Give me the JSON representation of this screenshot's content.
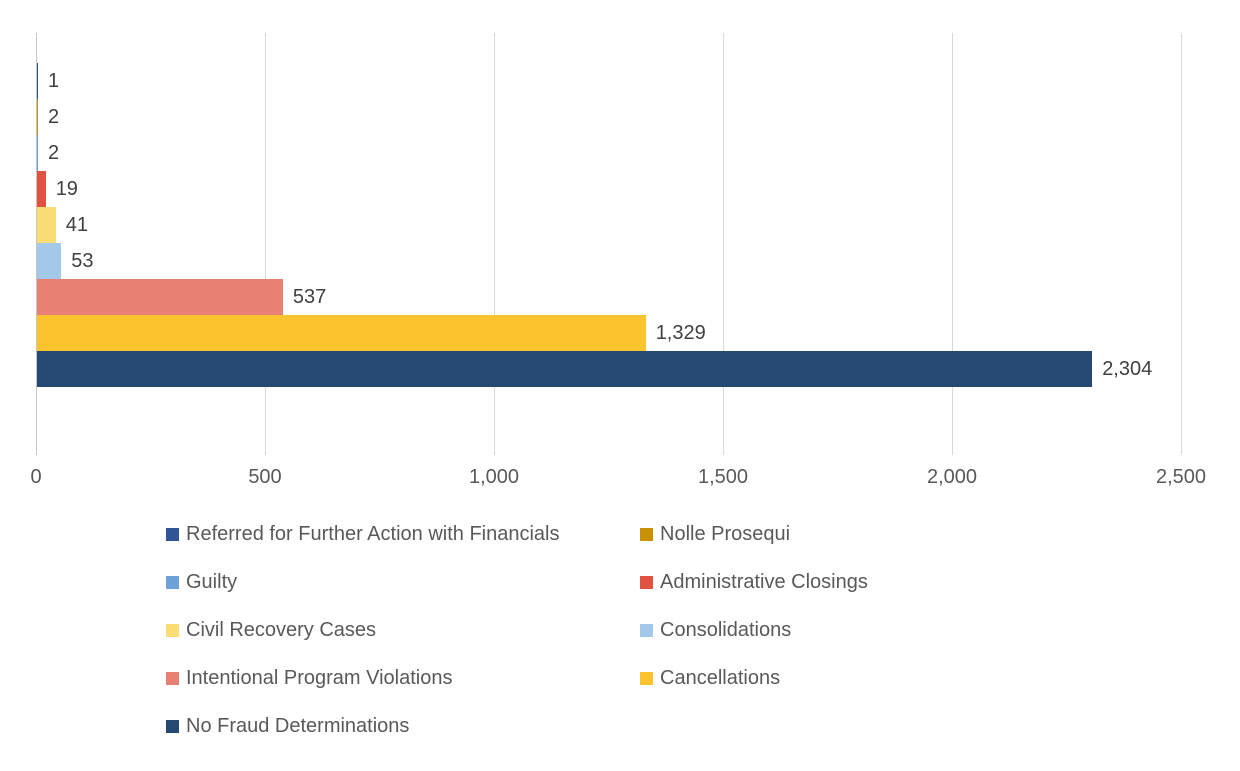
{
  "chart_data": {
    "type": "bar",
    "orientation": "horizontal",
    "title": "",
    "xlabel": "",
    "ylabel": "",
    "xlim": [
      0,
      2500
    ],
    "grid": true,
    "legend_position": "bottom",
    "categories": [
      "Referred for Further Action with Financials",
      "Nolle Prosequi",
      "Guilty",
      "Administrative Closings",
      "Civil Recovery Cases",
      "Consolidations",
      "Intentional Program Violations",
      "Cancellations",
      "No Fraud Determinations"
    ],
    "values": [
      1,
      2,
      2,
      19,
      41,
      53,
      537,
      1329,
      2304
    ],
    "value_labels": [
      "1",
      "2",
      "2",
      "19",
      "41",
      "53",
      "537",
      "1,329",
      "2,304"
    ],
    "colors": [
      "#2F5597",
      "#C99204",
      "#6DA2D8",
      "#E15241",
      "#FBDD76",
      "#A4C8E9",
      "#E88073",
      "#FBC32D",
      "#264973"
    ],
    "x_ticks": [
      {
        "value": 0,
        "label": "0"
      },
      {
        "value": 500,
        "label": "500"
      },
      {
        "value": 1000,
        "label": "1,000"
      },
      {
        "value": 1500,
        "label": "1,500"
      },
      {
        "value": 2000,
        "label": "2,000"
      },
      {
        "value": 2500,
        "label": "2,500"
      }
    ],
    "style_colors": {
      "gridline": "#D9D9D9",
      "axis_line": "#C6C6C6",
      "value_label_text": "#404040",
      "axis_tick_text": "#595959",
      "legend_text": "#595959",
      "background": "#FFFFFF"
    }
  }
}
